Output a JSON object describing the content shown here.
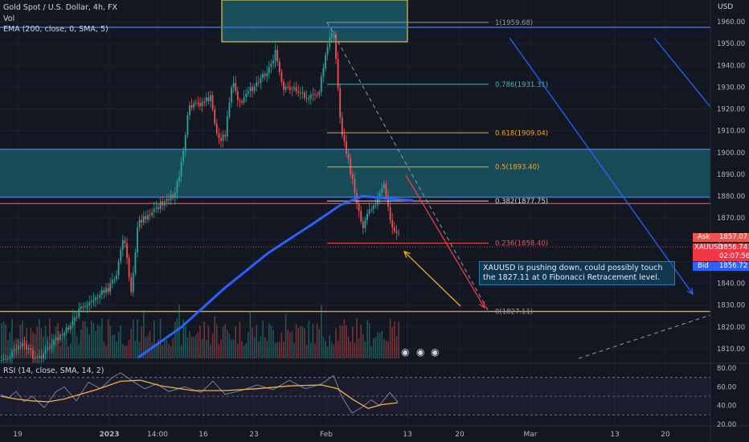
{
  "header": {
    "title": "Gold Spot / U.S. Dollar, 4h, FX",
    "vol_label": "Vol",
    "ema_label": "EMA (200, close, 0, SMA, 5)",
    "rsi_label": "RSI (14, close, SMA, 14, 2)",
    "currency": "USD"
  },
  "note": {
    "text": "XAUUSD is pushing down, could possibly touch the 1827.11 at 0 Fibonacci Retracement level."
  },
  "price_tags": {
    "ask_label": "Ask",
    "ask_value": "1857.07",
    "symbol_label": "XAUUSD",
    "last_value": "1856.74",
    "countdown": "02:07:56",
    "bid_label": "Bid",
    "bid_value": "1856.72"
  },
  "colors": {
    "background": "#131722",
    "up": "#26a69a",
    "down": "#ef5350",
    "ema": "#2962ff",
    "fib_orange": "#f5a623",
    "fib_teal": "#4db6ac",
    "zone": "#1b5e6b",
    "rsi_line": "#7b7f8e",
    "rsi_ma": "#f5b041"
  },
  "chart_data": [
    {
      "type": "line",
      "title": "Gold Spot / U.S. Dollar, 4h, FX",
      "xlabel": "",
      "ylabel": "USD",
      "x_tick_labels": [
        "19",
        "2023",
        "14:00",
        "16",
        "23",
        "Feb",
        "13",
        "20",
        "Mar",
        "13",
        "20"
      ],
      "y_ticks": [
        1810,
        1820,
        1830,
        1840,
        1850,
        1860,
        1870,
        1880,
        1890,
        1900,
        1910,
        1920,
        1930,
        1940,
        1950,
        1960
      ],
      "ylim": [
        1805,
        1965
      ],
      "price_path": [
        [
          "2022-12-16",
          1802
        ],
        [
          "2022-12-19",
          1806
        ],
        [
          "2022-12-21",
          1812
        ],
        [
          "2022-12-23",
          1805
        ],
        [
          "2022-12-27",
          1818
        ],
        [
          "2022-12-29",
          1828
        ],
        [
          "2023-01-02",
          1838
        ],
        [
          "2023-01-03",
          1845
        ],
        [
          "2023-01-04",
          1862
        ],
        [
          "2023-01-05",
          1836
        ],
        [
          "2023-01-06",
          1868
        ],
        [
          "2023-01-09",
          1876
        ],
        [
          "2023-01-10",
          1878
        ],
        [
          "2023-01-11",
          1880
        ],
        [
          "2023-01-12",
          1895
        ],
        [
          "2023-01-13",
          1920
        ],
        [
          "2023-01-16",
          1925
        ],
        [
          "2023-01-17",
          1906
        ],
        [
          "2023-01-18",
          1908
        ],
        [
          "2023-01-19",
          1932
        ],
        [
          "2023-01-20",
          1922
        ],
        [
          "2023-01-23",
          1935
        ],
        [
          "2023-01-24",
          1938
        ],
        [
          "2023-01-25",
          1946
        ],
        [
          "2023-01-26",
          1928
        ],
        [
          "2023-01-27",
          1930
        ],
        [
          "2023-01-30",
          1925
        ],
        [
          "2023-01-31",
          1928
        ],
        [
          "2023-02-01",
          1946
        ],
        [
          "2023-02-02",
          1958
        ],
        [
          "2023-02-03",
          1912
        ],
        [
          "2023-02-06",
          1866
        ],
        [
          "2023-02-07",
          1875
        ],
        [
          "2023-02-08",
          1878
        ],
        [
          "2023-02-09",
          1885
        ],
        [
          "2023-02-10",
          1866
        ],
        [
          "2023-02-13",
          1856.74
        ]
      ],
      "ema_200_path": [
        [
          "2023-01-06",
          1806
        ],
        [
          "2023-01-12",
          1820
        ],
        [
          "2023-01-18",
          1838
        ],
        [
          "2023-01-24",
          1854
        ],
        [
          "2023-01-30",
          1867
        ],
        [
          "2023-02-03",
          1876
        ],
        [
          "2023-02-06",
          1880
        ],
        [
          "2023-02-09",
          1879
        ],
        [
          "2023-02-13",
          1878
        ]
      ],
      "fibonacci_retracement": [
        {
          "level": "1",
          "price": 1959.68,
          "label": "1(1959.68)"
        },
        {
          "level": "0.786",
          "price": 1931.31,
          "label": "0.786(1931.31)"
        },
        {
          "level": "0.618",
          "price": 1909.04,
          "label": "0.618(1909.04)"
        },
        {
          "level": "0.5",
          "price": 1893.4,
          "label": "0.5(1893.40)"
        },
        {
          "level": "0.382",
          "price": 1877.75,
          "label": "0.382(1877.75)"
        },
        {
          "level": "0.236",
          "price": 1858.4,
          "label": "0.236(1858.40)"
        },
        {
          "level": "0",
          "price": 1827.11,
          "label": "0(1827.11)"
        }
      ],
      "horizontal_lines": [
        1957.4,
        1876.6,
        1827.11
      ],
      "zones": [
        {
          "from": 1957.4,
          "to": 1971
        },
        {
          "from": 1879.5,
          "to": 1901.5
        }
      ]
    },
    {
      "type": "line",
      "title": "RSI (14, close, SMA, 14, 2)",
      "y_ticks": [
        20,
        40,
        60,
        80
      ],
      "ylim": [
        18,
        83
      ],
      "rsi_path": [
        [
          1,
          52
        ],
        [
          10,
          48
        ],
        [
          20,
          55
        ],
        [
          30,
          44
        ],
        [
          40,
          50
        ],
        [
          55,
          38
        ],
        [
          70,
          55
        ],
        [
          80,
          60
        ],
        [
          95,
          45
        ],
        [
          110,
          65
        ],
        [
          125,
          58
        ],
        [
          140,
          70
        ],
        [
          150,
          75
        ],
        [
          165,
          66
        ],
        [
          180,
          58
        ],
        [
          195,
          63
        ],
        [
          210,
          55
        ],
        [
          230,
          60
        ],
        [
          250,
          54
        ],
        [
          265,
          66
        ],
        [
          280,
          52
        ],
        [
          300,
          56
        ],
        [
          320,
          62
        ],
        [
          340,
          57
        ],
        [
          360,
          67
        ],
        [
          380,
          58
        ],
        [
          400,
          63
        ],
        [
          415,
          72
        ],
        [
          425,
          50
        ],
        [
          438,
          32
        ],
        [
          450,
          38
        ],
        [
          462,
          46
        ],
        [
          472,
          40
        ],
        [
          485,
          54
        ],
        [
          495,
          44
        ]
      ],
      "rsi_ma_path": [
        [
          1,
          50
        ],
        [
          20,
          47
        ],
        [
          40,
          45
        ],
        [
          60,
          44
        ],
        [
          80,
          47
        ],
        [
          100,
          52
        ],
        [
          120,
          57
        ],
        [
          150,
          66
        ],
        [
          175,
          67
        ],
        [
          200,
          61
        ],
        [
          240,
          56
        ],
        [
          280,
          56
        ],
        [
          320,
          58
        ],
        [
          360,
          61
        ],
        [
          400,
          62
        ],
        [
          420,
          58
        ],
        [
          440,
          46
        ],
        [
          458,
          37
        ],
        [
          475,
          41
        ],
        [
          495,
          43
        ]
      ]
    }
  ]
}
